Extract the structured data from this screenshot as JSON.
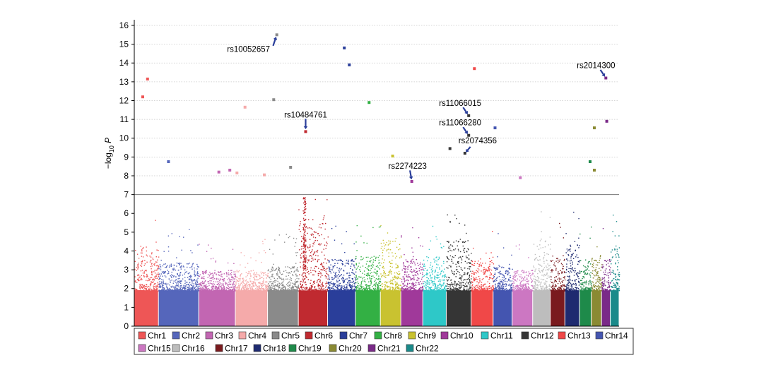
{
  "chart_data": {
    "type": "scatter",
    "subtype": "manhattan",
    "ylabel": "−log10 P",
    "ylim": [
      0,
      16.3
    ],
    "yticks": [
      "0",
      "1",
      "2",
      "3",
      "4",
      "5",
      "6",
      "7",
      "8",
      "9",
      "10",
      "11",
      "12",
      "13",
      "14",
      "15",
      "16"
    ],
    "threshold": 7,
    "grid": "horizontal dotted lines above threshold",
    "chromosomes": [
      {
        "name": "Chr1",
        "color": "#ee5656",
        "bg_max": 4.3
      },
      {
        "name": "Chr2",
        "color": "#5566bb",
        "bg_max": 3.4
      },
      {
        "name": "Chr3",
        "color": "#c266b2",
        "bg_max": 3.0
      },
      {
        "name": "Chr4",
        "color": "#f5aaaa",
        "bg_max": 3.0
      },
      {
        "name": "Chr5",
        "color": "#8a8a8a",
        "bg_max": 3.2
      },
      {
        "name": "Chr6",
        "color": "#c02a30",
        "bg_max": 5.8
      },
      {
        "name": "Chr7",
        "color": "#2a3e9a",
        "bg_max": 3.6
      },
      {
        "name": "Chr8",
        "color": "#33b044",
        "bg_max": 3.8
      },
      {
        "name": "Chr9",
        "color": "#c9c230",
        "bg_max": 4.6
      },
      {
        "name": "Chr10",
        "color": "#a0399a",
        "bg_max": 3.6
      },
      {
        "name": "Chr11",
        "color": "#2ec8c8",
        "bg_max": 3.8
      },
      {
        "name": "Chr12",
        "color": "#353535",
        "bg_max": 4.6
      },
      {
        "name": "Chr13",
        "color": "#f04848",
        "bg_max": 3.6
      },
      {
        "name": "Chr14",
        "color": "#4455b0",
        "bg_max": 3.2
      },
      {
        "name": "Chr15",
        "color": "#cc77c2",
        "bg_max": 3.0
      },
      {
        "name": "Chr16",
        "color": "#bdbdbd",
        "bg_max": 4.6
      },
      {
        "name": "Chr17",
        "color": "#7a1a1e",
        "bg_max": 3.8
      },
      {
        "name": "Chr18",
        "color": "#1e2a70",
        "bg_max": 4.4
      },
      {
        "name": "Chr19",
        "color": "#1e8a4a",
        "bg_max": 3.6
      },
      {
        "name": "Chr20",
        "color": "#8a8a33",
        "bg_max": 3.8
      },
      {
        "name": "Chr21",
        "color": "#7a2a88",
        "bg_max": 3.6
      },
      {
        "name": "Chr22",
        "color": "#1a8a8a",
        "bg_max": 4.2
      }
    ],
    "significant_points": [
      {
        "chr": "Chr1",
        "pos": 0.35,
        "y": 12.2
      },
      {
        "chr": "Chr1",
        "pos": 0.55,
        "y": 13.15
      },
      {
        "chr": "Chr2",
        "pos": 0.25,
        "y": 8.75
      },
      {
        "chr": "Chr3",
        "pos": 0.55,
        "y": 8.2
      },
      {
        "chr": "Chr3",
        "pos": 0.85,
        "y": 8.3
      },
      {
        "chr": "Chr4",
        "pos": 0.05,
        "y": 8.15
      },
      {
        "chr": "Chr4",
        "pos": 0.3,
        "y": 11.65
      },
      {
        "chr": "Chr4",
        "pos": 0.9,
        "y": 8.05
      },
      {
        "chr": "Chr5",
        "pos": 0.2,
        "y": 12.05
      },
      {
        "chr": "Chr5",
        "pos": 0.75,
        "y": 8.45
      },
      {
        "chr": "Chr5",
        "pos": 0.3,
        "y": 15.5
      },
      {
        "chr": "Chr6",
        "pos": 0.25,
        "y": 10.35
      },
      {
        "chr": "Chr7",
        "pos": 0.6,
        "y": 14.8
      },
      {
        "chr": "Chr7",
        "pos": 0.78,
        "y": 13.9
      },
      {
        "chr": "Chr8",
        "pos": 0.55,
        "y": 11.9
      },
      {
        "chr": "Chr9",
        "pos": 0.6,
        "y": 9.05
      },
      {
        "chr": "Chr10",
        "pos": 0.5,
        "y": 7.7
      },
      {
        "chr": "Chr12",
        "pos": 0.15,
        "y": 9.45
      },
      {
        "chr": "Chr12",
        "pos": 0.75,
        "y": 9.2
      },
      {
        "chr": "Chr12",
        "pos": 0.9,
        "y": 11.2
      },
      {
        "chr": "Chr12",
        "pos": 0.9,
        "y": 10.15
      },
      {
        "chr": "Chr13",
        "pos": 0.15,
        "y": 13.7
      },
      {
        "chr": "Chr14",
        "pos": 0.1,
        "y": 10.55
      },
      {
        "chr": "Chr15",
        "pos": 0.4,
        "y": 7.9
      },
      {
        "chr": "Chr19",
        "pos": 0.9,
        "y": 8.75
      },
      {
        "chr": "Chr20",
        "pos": 0.3,
        "y": 8.3
      },
      {
        "chr": "Chr20",
        "pos": 0.3,
        "y": 10.55
      },
      {
        "chr": "Chr21",
        "pos": 0.6,
        "y": 10.9
      },
      {
        "chr": "Chr21",
        "pos": 0.5,
        "y": 13.2
      }
    ],
    "annotations": [
      {
        "label": "rs10052657",
        "chr": "Chr5",
        "pos": 0.3,
        "y": 15.5
      },
      {
        "label": "rs10484761",
        "chr": "Chr6",
        "pos": 0.25,
        "y": 10.35
      },
      {
        "label": "rs2274223",
        "chr": "Chr10",
        "pos": 0.5,
        "y": 7.7
      },
      {
        "label": "rs11066015",
        "chr": "Chr12",
        "pos": 0.9,
        "y": 11.2
      },
      {
        "label": "rs11066280",
        "chr": "Chr12",
        "pos": 0.9,
        "y": 10.15
      },
      {
        "label": "rs2074356",
        "chr": "Chr12",
        "pos": 0.75,
        "y": 9.2
      },
      {
        "label": "rs2014300",
        "chr": "Chr21",
        "pos": 0.5,
        "y": 13.2
      }
    ],
    "legend": {
      "placement": "bottom",
      "rows": 2
    }
  }
}
